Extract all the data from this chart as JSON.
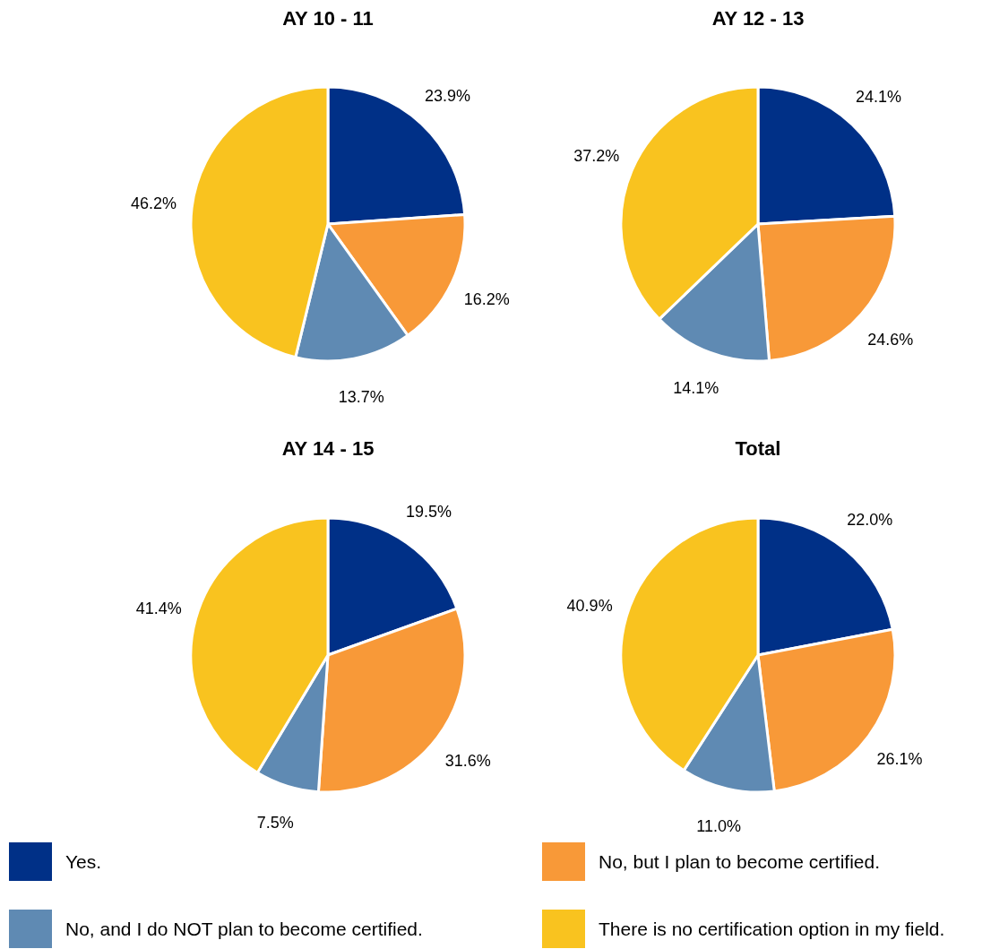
{
  "chart_data": [
    {
      "type": "pie",
      "title": "AY 10 - 11",
      "categories": [
        "Yes.",
        "No, but I plan to become certified.",
        "No, and I do NOT plan to become certified.",
        "There is no certification option in my field."
      ],
      "values": [
        23.9,
        16.2,
        13.7,
        46.2
      ],
      "value_labels": [
        "23.9%",
        "16.2%",
        "13.7%",
        "46.2%"
      ],
      "colors": [
        "#003087",
        "#f89938",
        "#5f8ab3",
        "#f9c31f"
      ],
      "legend": "bottom"
    },
    {
      "type": "pie",
      "title": "AY 12 - 13",
      "values": [
        24.1,
        24.6,
        14.1,
        37.2
      ],
      "value_labels": [
        "24.1%",
        "24.6%",
        "14.1%",
        "37.2%"
      ],
      "colors": [
        "#003087",
        "#f89938",
        "#5f8ab3",
        "#f9c31f"
      ]
    },
    {
      "type": "pie",
      "title": "AY 14 - 15",
      "values": [
        19.5,
        31.6,
        7.5,
        41.4
      ],
      "value_labels": [
        "19.5%",
        "31.6%",
        "7.5%",
        "41.4%"
      ],
      "colors": [
        "#003087",
        "#f89938",
        "#5f8ab3",
        "#f9c31f"
      ]
    },
    {
      "type": "pie",
      "title": "Total",
      "values": [
        22.0,
        26.1,
        11.0,
        40.9
      ],
      "value_labels": [
        "22.0%",
        "26.1%",
        "11.0%",
        "40.9%"
      ],
      "colors": [
        "#003087",
        "#f89938",
        "#5f8ab3",
        "#f9c31f"
      ]
    }
  ]
}
